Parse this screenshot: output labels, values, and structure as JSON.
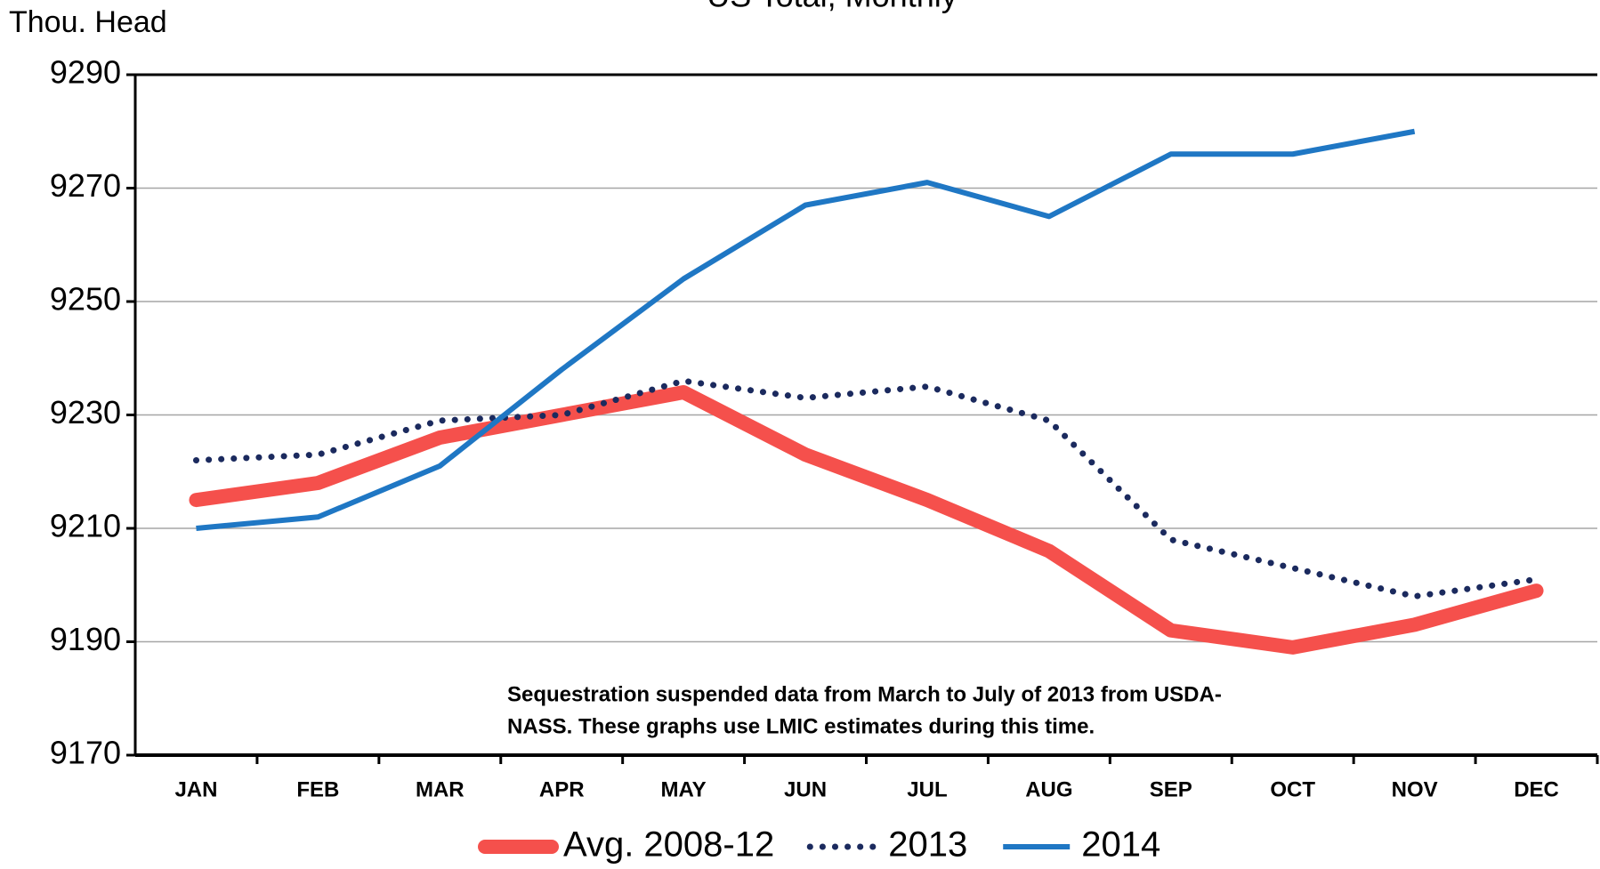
{
  "chart_data": {
    "type": "line",
    "title": "US Total, Monthly",
    "y_label": "Thou. Head",
    "categories": [
      "JAN",
      "FEB",
      "MAR",
      "APR",
      "MAY",
      "JUN",
      "JUL",
      "AUG",
      "SEP",
      "OCT",
      "NOV",
      "DEC"
    ],
    "series": [
      {
        "name": "Avg. 2008-12",
        "color": "#f5504c",
        "style": "thick",
        "values": [
          9215,
          9218,
          9226,
          9230,
          9234,
          9223,
          9215,
          9206,
          9192,
          9189,
          9193,
          9199
        ]
      },
      {
        "name": "2013",
        "color": "#1b2a5e",
        "style": "dotted",
        "values": [
          9222,
          9223,
          9229,
          9230,
          9236,
          9233,
          9235,
          9229,
          9208,
          9203,
          9198,
          9201
        ]
      },
      {
        "name": "2014",
        "color": "#1f77c4",
        "style": "solid",
        "values": [
          9210,
          9212,
          9221,
          9238,
          9254,
          9267,
          9271,
          9265,
          9276,
          9276,
          9280,
          null
        ]
      }
    ],
    "ylim": [
      9170,
      9290
    ],
    "yticks": [
      9170,
      9190,
      9210,
      9230,
      9250,
      9270,
      9290
    ],
    "grid": true,
    "legend": "bottom",
    "annotation": [
      "Sequestration suspended data from March to July of 2013 from USDA-",
      "NASS. These graphs use LMIC estimates during this time."
    ]
  }
}
